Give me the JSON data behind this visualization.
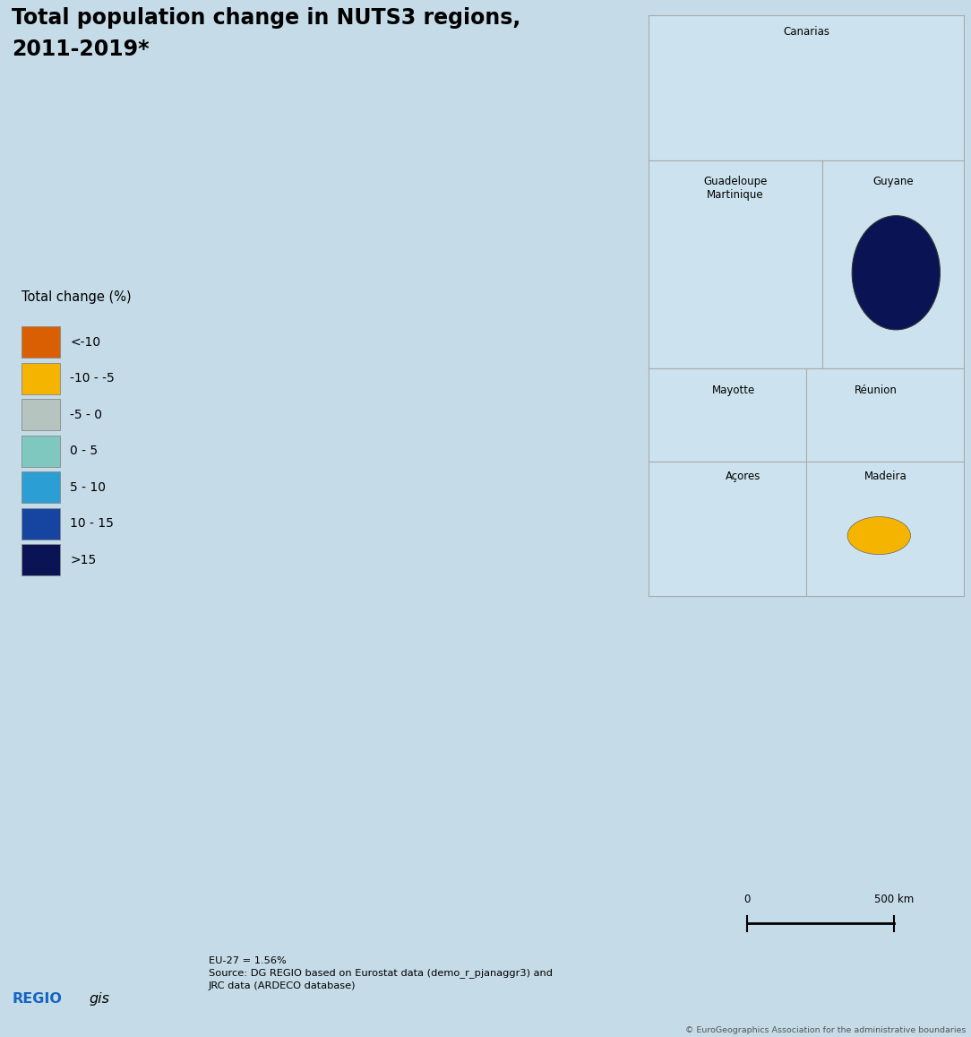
{
  "title_line1": "Total population change in NUTS3 regions,",
  "title_line2": "2011-2019*",
  "title_fontsize": 17,
  "title_fontweight": "bold",
  "background_color": "#cce0ee",
  "ocean_color": "#c5dce8",
  "land_no_data_color": "#d9d4cd",
  "non_eu_land_color": "#ddd8d2",
  "legend_title": "Total change (%)",
  "legend_categories": [
    "<-10",
    "-10 - -5",
    "-5 - 0",
    "0 - 5",
    "5 - 10",
    "10 - 15",
    ">15"
  ],
  "legend_colors": [
    "#d95f02",
    "#f5b400",
    "#b5c4be",
    "#7ec8bf",
    "#2b9fd4",
    "#1545a0",
    "#0a1455"
  ],
  "inset_bg": "#cce3ef",
  "inset_border": "#aaaaaa",
  "source_text": "EU-27 = 1.56%\nSource: DG REGIO based on Eurostat data (demo_r_pjanaggr3) and\nJRC data (ARDECO database)",
  "copyright_text": "© EuroGeographics Association for the administrative boundaries",
  "scale_label": "500 km",
  "fig_width": 10.84,
  "fig_height": 11.57,
  "dpi": 100,
  "map_xlim": [
    -11,
    34
  ],
  "map_ylim": [
    34,
    71.5
  ],
  "eu_country_colors": {
    "Finland": "#7ec8bf",
    "Sweden": "#7ec8bf",
    "Norway": "#d9d4cd",
    "Iceland": "#d9d4cd",
    "Estonia": "#f5b400",
    "Latvia": "#f5b400",
    "Lithuania": "#f5b400",
    "Denmark": "#2b9fd4",
    "Ireland": "#2b9fd4",
    "United Kingdom": "#d9d4cd",
    "Netherlands": "#7ec8bf",
    "Belgium": "#7ec8bf",
    "Luxembourg": "#2b9fd4",
    "Germany": "#b5c4be",
    "Poland": "#f5b400",
    "Czech Republic": "#b5c4be",
    "Slovakia": "#f5b400",
    "Austria": "#b5c4be",
    "Switzerland": "#d9d4cd",
    "Hungary": "#f5b400",
    "Romania": "#f5b400",
    "Bulgaria": "#f5b400",
    "Slovenia": "#7ec8bf",
    "Croatia": "#b5c4be",
    "France": "#7ec8bf",
    "Spain": "#f5b400",
    "Portugal": "#7ec8bf",
    "Italy": "#b5c4be",
    "Greece": "#b5c4be",
    "Cyprus": "#b5c4be",
    "Malta": "#2b9fd4",
    "Serbia": "#d9d4cd",
    "Bosnia and Herzegovina": "#d9d4cd",
    "North Macedonia": "#d9d4cd",
    "Albania": "#d9d4cd",
    "Montenegro": "#d9d4cd",
    "Kosovo": "#d9d4cd",
    "Moldova": "#d9d4cd",
    "Ukraine": "#d9d4cd",
    "Belarus": "#d9d4cd",
    "Russia": "#d9d4cd",
    "Turkey": "#d9d4cd",
    "Morocco": "#d9d4cd",
    "Algeria": "#d9d4cd",
    "Tunisia": "#d9d4cd",
    "Libya": "#d9d4cd"
  }
}
